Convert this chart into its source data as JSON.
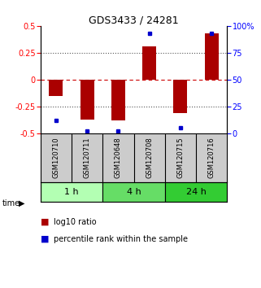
{
  "title": "GDS3433 / 24281",
  "samples": [
    "GSM120710",
    "GSM120711",
    "GSM120648",
    "GSM120708",
    "GSM120715",
    "GSM120716"
  ],
  "log10_ratio": [
    -0.15,
    -0.37,
    -0.38,
    0.31,
    -0.31,
    0.43
  ],
  "percentile_rank": [
    12,
    2,
    2,
    93,
    5,
    93
  ],
  "groups": [
    {
      "label": "1 h",
      "indices": [
        0,
        1
      ],
      "color": "#b3ffb3"
    },
    {
      "label": "4 h",
      "indices": [
        2,
        3
      ],
      "color": "#66dd66"
    },
    {
      "label": "24 h",
      "indices": [
        4,
        5
      ],
      "color": "#33cc33"
    }
  ],
  "ylim_left": [
    -0.5,
    0.5
  ],
  "ylim_right": [
    0,
    100
  ],
  "yticks_left": [
    -0.5,
    -0.25,
    0,
    0.25,
    0.5
  ],
  "ytick_labels_left": [
    "-0.5",
    "-0.25",
    "0",
    "0.25",
    "0.5"
  ],
  "yticks_right": [
    0,
    25,
    50,
    75,
    100
  ],
  "ytick_labels_right": [
    "0",
    "25",
    "50",
    "75",
    "100%"
  ],
  "bar_color": "#aa0000",
  "dot_color": "#0000cc",
  "zero_line_color": "#cc0000",
  "dotted_line_color": "#555555",
  "background_color": "#ffffff",
  "sample_box_color": "#cccccc",
  "legend_red": "log10 ratio",
  "legend_blue": "percentile rank within the sample"
}
